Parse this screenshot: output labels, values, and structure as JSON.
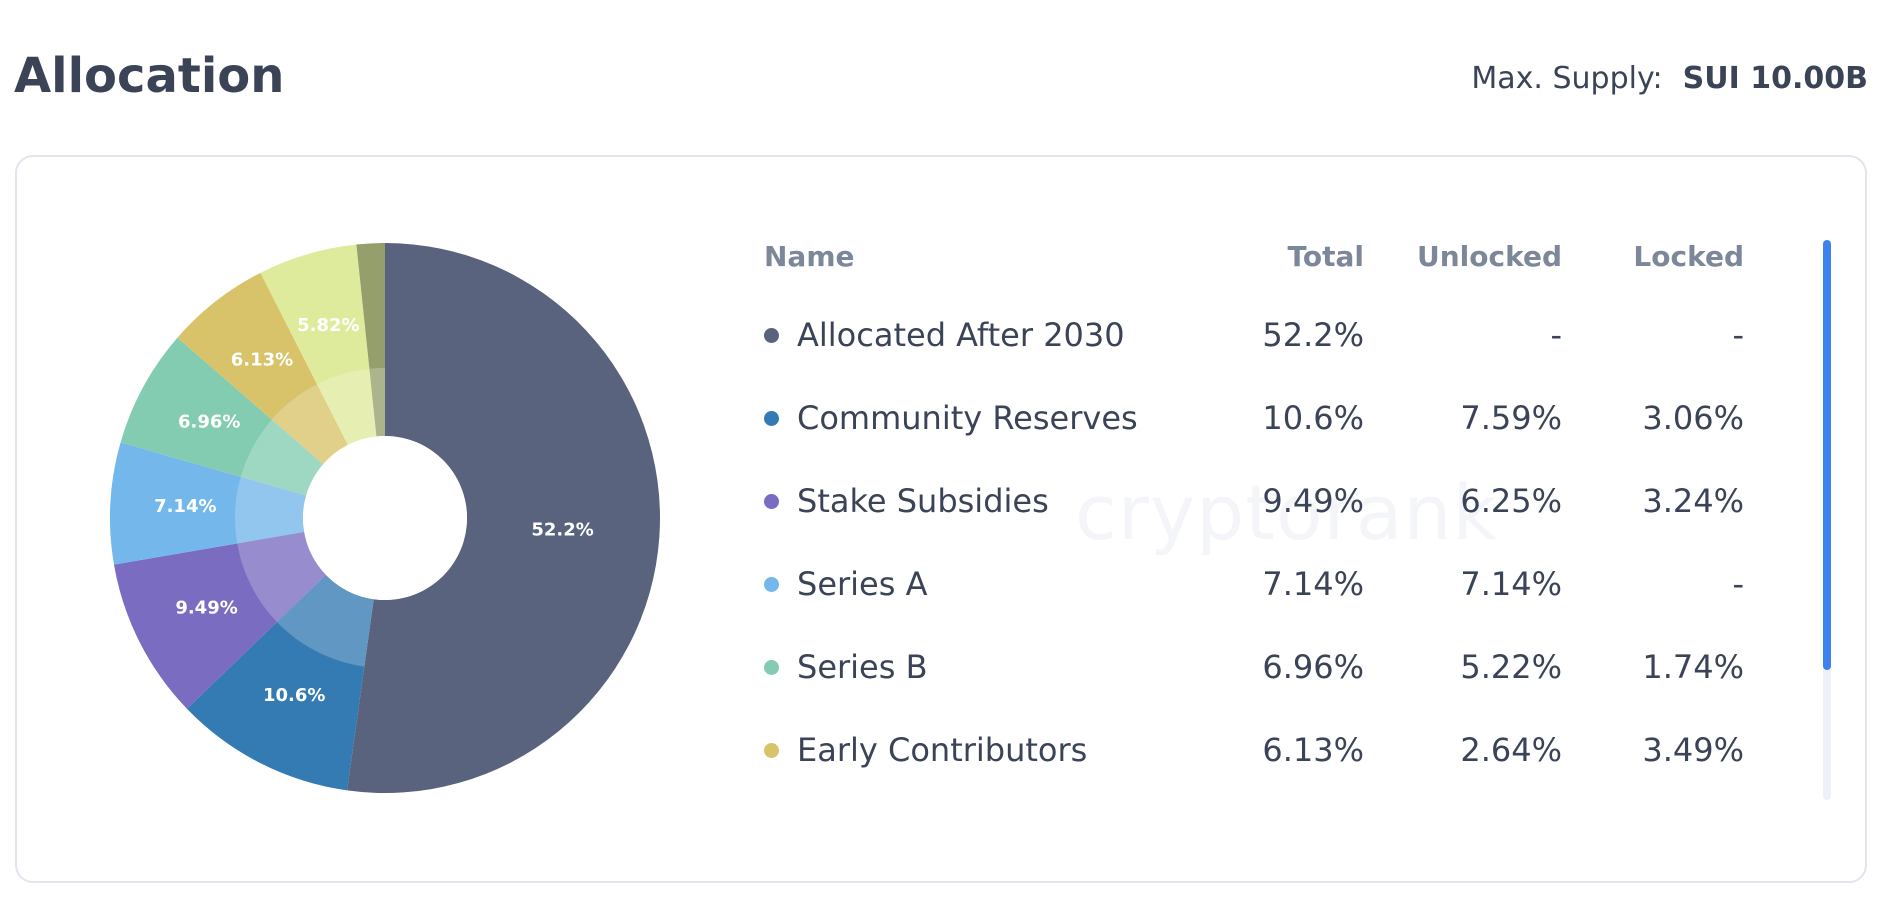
{
  "header": {
    "title": "Allocation",
    "supply_label": "Max. Supply:",
    "supply_value": "SUI 10.00B"
  },
  "watermark": "cryptorank",
  "table": {
    "columns": [
      "Name",
      "Total",
      "Unlocked",
      "Locked"
    ],
    "rows": [
      {
        "name": "Allocated After 2030",
        "total": "52.2%",
        "unlocked": "-",
        "locked": "-",
        "color": "#5a637d"
      },
      {
        "name": "Community Reserves",
        "total": "10.6%",
        "unlocked": "7.59%",
        "locked": "3.06%",
        "color": "#347ab3"
      },
      {
        "name": "Stake Subsidies",
        "total": "9.49%",
        "unlocked": "6.25%",
        "locked": "3.24%",
        "color": "#7a6cc0"
      },
      {
        "name": "Series A",
        "total": "7.14%",
        "unlocked": "7.14%",
        "locked": "-",
        "color": "#74b7ea"
      },
      {
        "name": "Series B",
        "total": "6.96%",
        "unlocked": "5.22%",
        "locked": "1.74%",
        "color": "#83ccb1"
      },
      {
        "name": "Early Contributors",
        "total": "6.13%",
        "unlocked": "2.64%",
        "locked": "3.49%",
        "color": "#d9c36a"
      }
    ]
  },
  "chart_data": {
    "type": "pie",
    "donut": true,
    "start": "top",
    "direction": "clockwise",
    "slices": [
      {
        "label": "Allocated After 2030",
        "value": 52.2,
        "display": "52.2%",
        "color": "#5a637d"
      },
      {
        "label": "Community Reserves",
        "value": 10.6,
        "display": "10.6%",
        "color": "#347ab3"
      },
      {
        "label": "Stake Subsidies",
        "value": 9.49,
        "display": "9.49%",
        "color": "#7a6cc0"
      },
      {
        "label": "Series A",
        "value": 7.14,
        "display": "7.14%",
        "color": "#74b7ea"
      },
      {
        "label": "Series B",
        "value": 6.96,
        "display": "6.96%",
        "color": "#83ccb1"
      },
      {
        "label": "Early Contributors",
        "value": 6.13,
        "display": "6.13%",
        "color": "#d9c36a"
      },
      {
        "label": "",
        "value": 5.82,
        "display": "5.82%",
        "color": "#dfeb9c"
      },
      {
        "label": "",
        "value": 1.66,
        "display": "",
        "color": "#959f6c"
      }
    ]
  }
}
